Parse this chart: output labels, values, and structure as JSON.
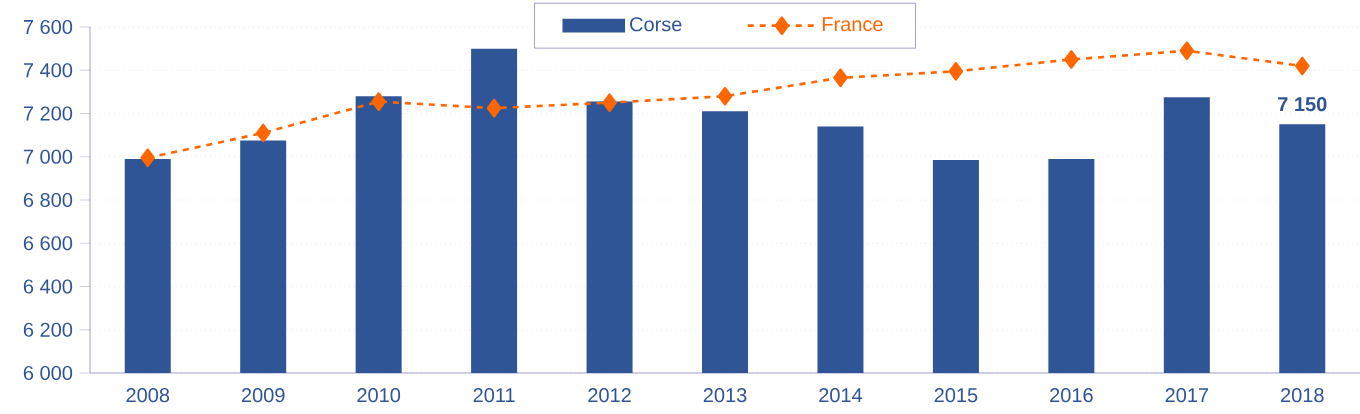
{
  "chart_data": {
    "type": "bar",
    "categories": [
      "2008",
      "2009",
      "2010",
      "2011",
      "2012",
      "2013",
      "2014",
      "2015",
      "2016",
      "2017",
      "2018"
    ],
    "series": [
      {
        "name": "Corse",
        "color": "#2f5597",
        "values": [
          6990,
          7075,
          7280,
          7500,
          7255,
          7210,
          7140,
          6985,
          6990,
          7275,
          7150
        ],
        "value_labels": [
          null,
          null,
          null,
          null,
          null,
          null,
          null,
          null,
          null,
          null,
          "7 150"
        ]
      },
      {
        "name": "France",
        "type": "line",
        "color": "#ff6600",
        "marker": "diamond",
        "line_style": "dashed",
        "values": [
          6995,
          7110,
          7255,
          7225,
          7250,
          7280,
          7365,
          7395,
          7450,
          7490,
          7420
        ]
      }
    ],
    "ylim": [
      6000,
      7600
    ],
    "yticks": [
      {
        "value": 6000,
        "label": "6 000"
      },
      {
        "value": 6200,
        "label": "6 200"
      },
      {
        "value": 6400,
        "label": "6 400"
      },
      {
        "value": 6600,
        "label": "6 600"
      },
      {
        "value": 6800,
        "label": "6 800"
      },
      {
        "value": 7000,
        "label": "7 000"
      },
      {
        "value": 7200,
        "label": "7 200"
      },
      {
        "value": 7400,
        "label": "7 400"
      },
      {
        "value": 7600,
        "label": "7 600"
      }
    ],
    "grid": "y",
    "legend": "top"
  }
}
